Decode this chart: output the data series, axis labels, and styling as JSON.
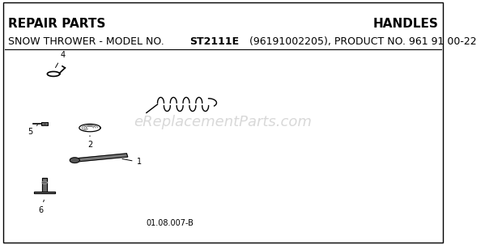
{
  "bg_color": "#ffffff",
  "border_color": "#000000",
  "title_left": "REPAIR PARTS",
  "title_right": "HANDLES",
  "subtitle_normal": "SNOW THROWER - MODEL NO. ",
  "subtitle_bold": "ST2111E",
  "subtitle_rest": " (96191002205), PRODUCT NO. 961 91 00-22",
  "watermark": "eReplacementParts.com",
  "footer": "01.08.007-B",
  "title_fontsize": 11,
  "subtitle_fontsize": 9,
  "watermark_fontsize": 13,
  "footer_fontsize": 7,
  "part_label_fontsize": 7
}
